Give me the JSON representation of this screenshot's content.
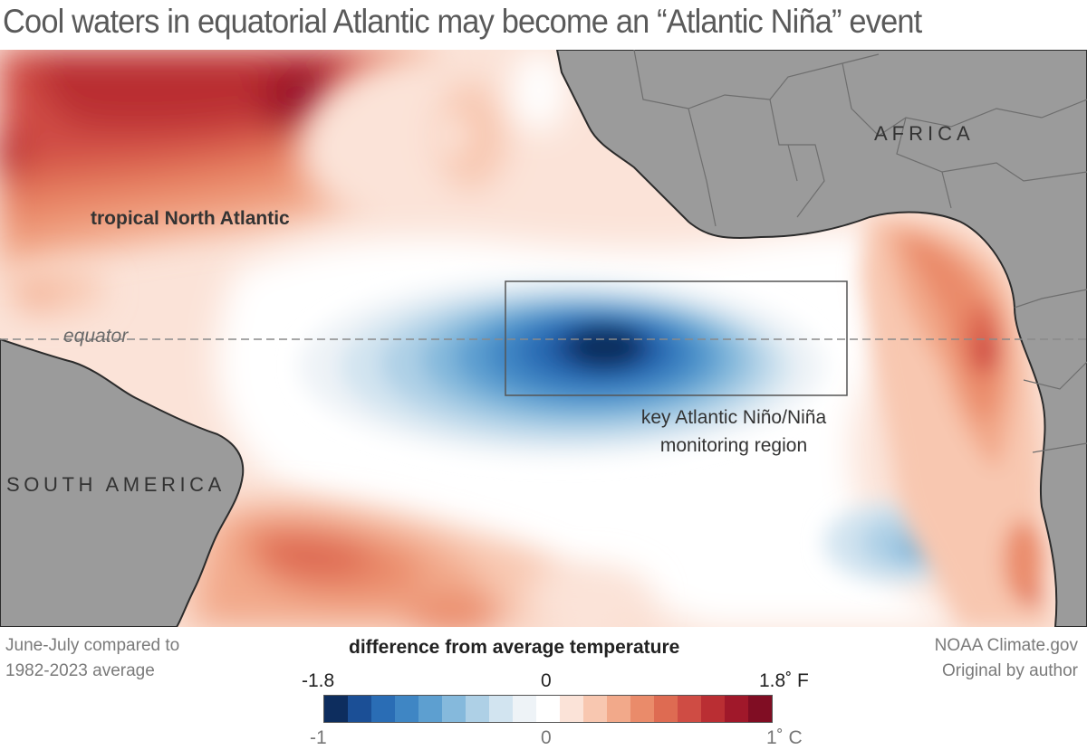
{
  "title": "Cool waters in equatorial Atlantic may become an “Atlantic Niña” event",
  "map": {
    "labels": {
      "africa": "AFRICA",
      "south_america": "SOUTH AMERICA",
      "tropical_north_atlantic": "tropical North Atlantic",
      "equator": "equator",
      "region_line1": "key Atlantic Niño/Niña",
      "region_line2": "monitoring region"
    }
  },
  "footer": {
    "left_line1": "June-July compared to",
    "left_line2": "1982-2023 average",
    "right_line1": "NOAA Climate.gov",
    "right_line2": "Original by author"
  },
  "legend": {
    "title": "difference from average temperature",
    "fahrenheit": {
      "min": "-1.8",
      "mid": "0",
      "max": "1.8˚ F"
    },
    "celsius": {
      "min": "-1",
      "mid": "0",
      "max": "1˚ C"
    },
    "range_celsius": [
      -1,
      1
    ],
    "colors": [
      "#0d2d5e",
      "#1b4f96",
      "#2a6db5",
      "#3f86c4",
      "#5d9fd0",
      "#85b9dc",
      "#aed0e6",
      "#d2e4f0",
      "#eef3f7",
      "#ffffff",
      "#fbe3d8",
      "#f8c7b0",
      "#f2a98a",
      "#ea8b6a",
      "#de6b52",
      "#cf4c44",
      "#ba2e33",
      "#a0182a",
      "#800d23"
    ]
  },
  "colors": {
    "land": "#9b9b9b",
    "land_border": "#6e6e6e",
    "coast": "#2b2b2b",
    "text": "#5a5a5a"
  }
}
